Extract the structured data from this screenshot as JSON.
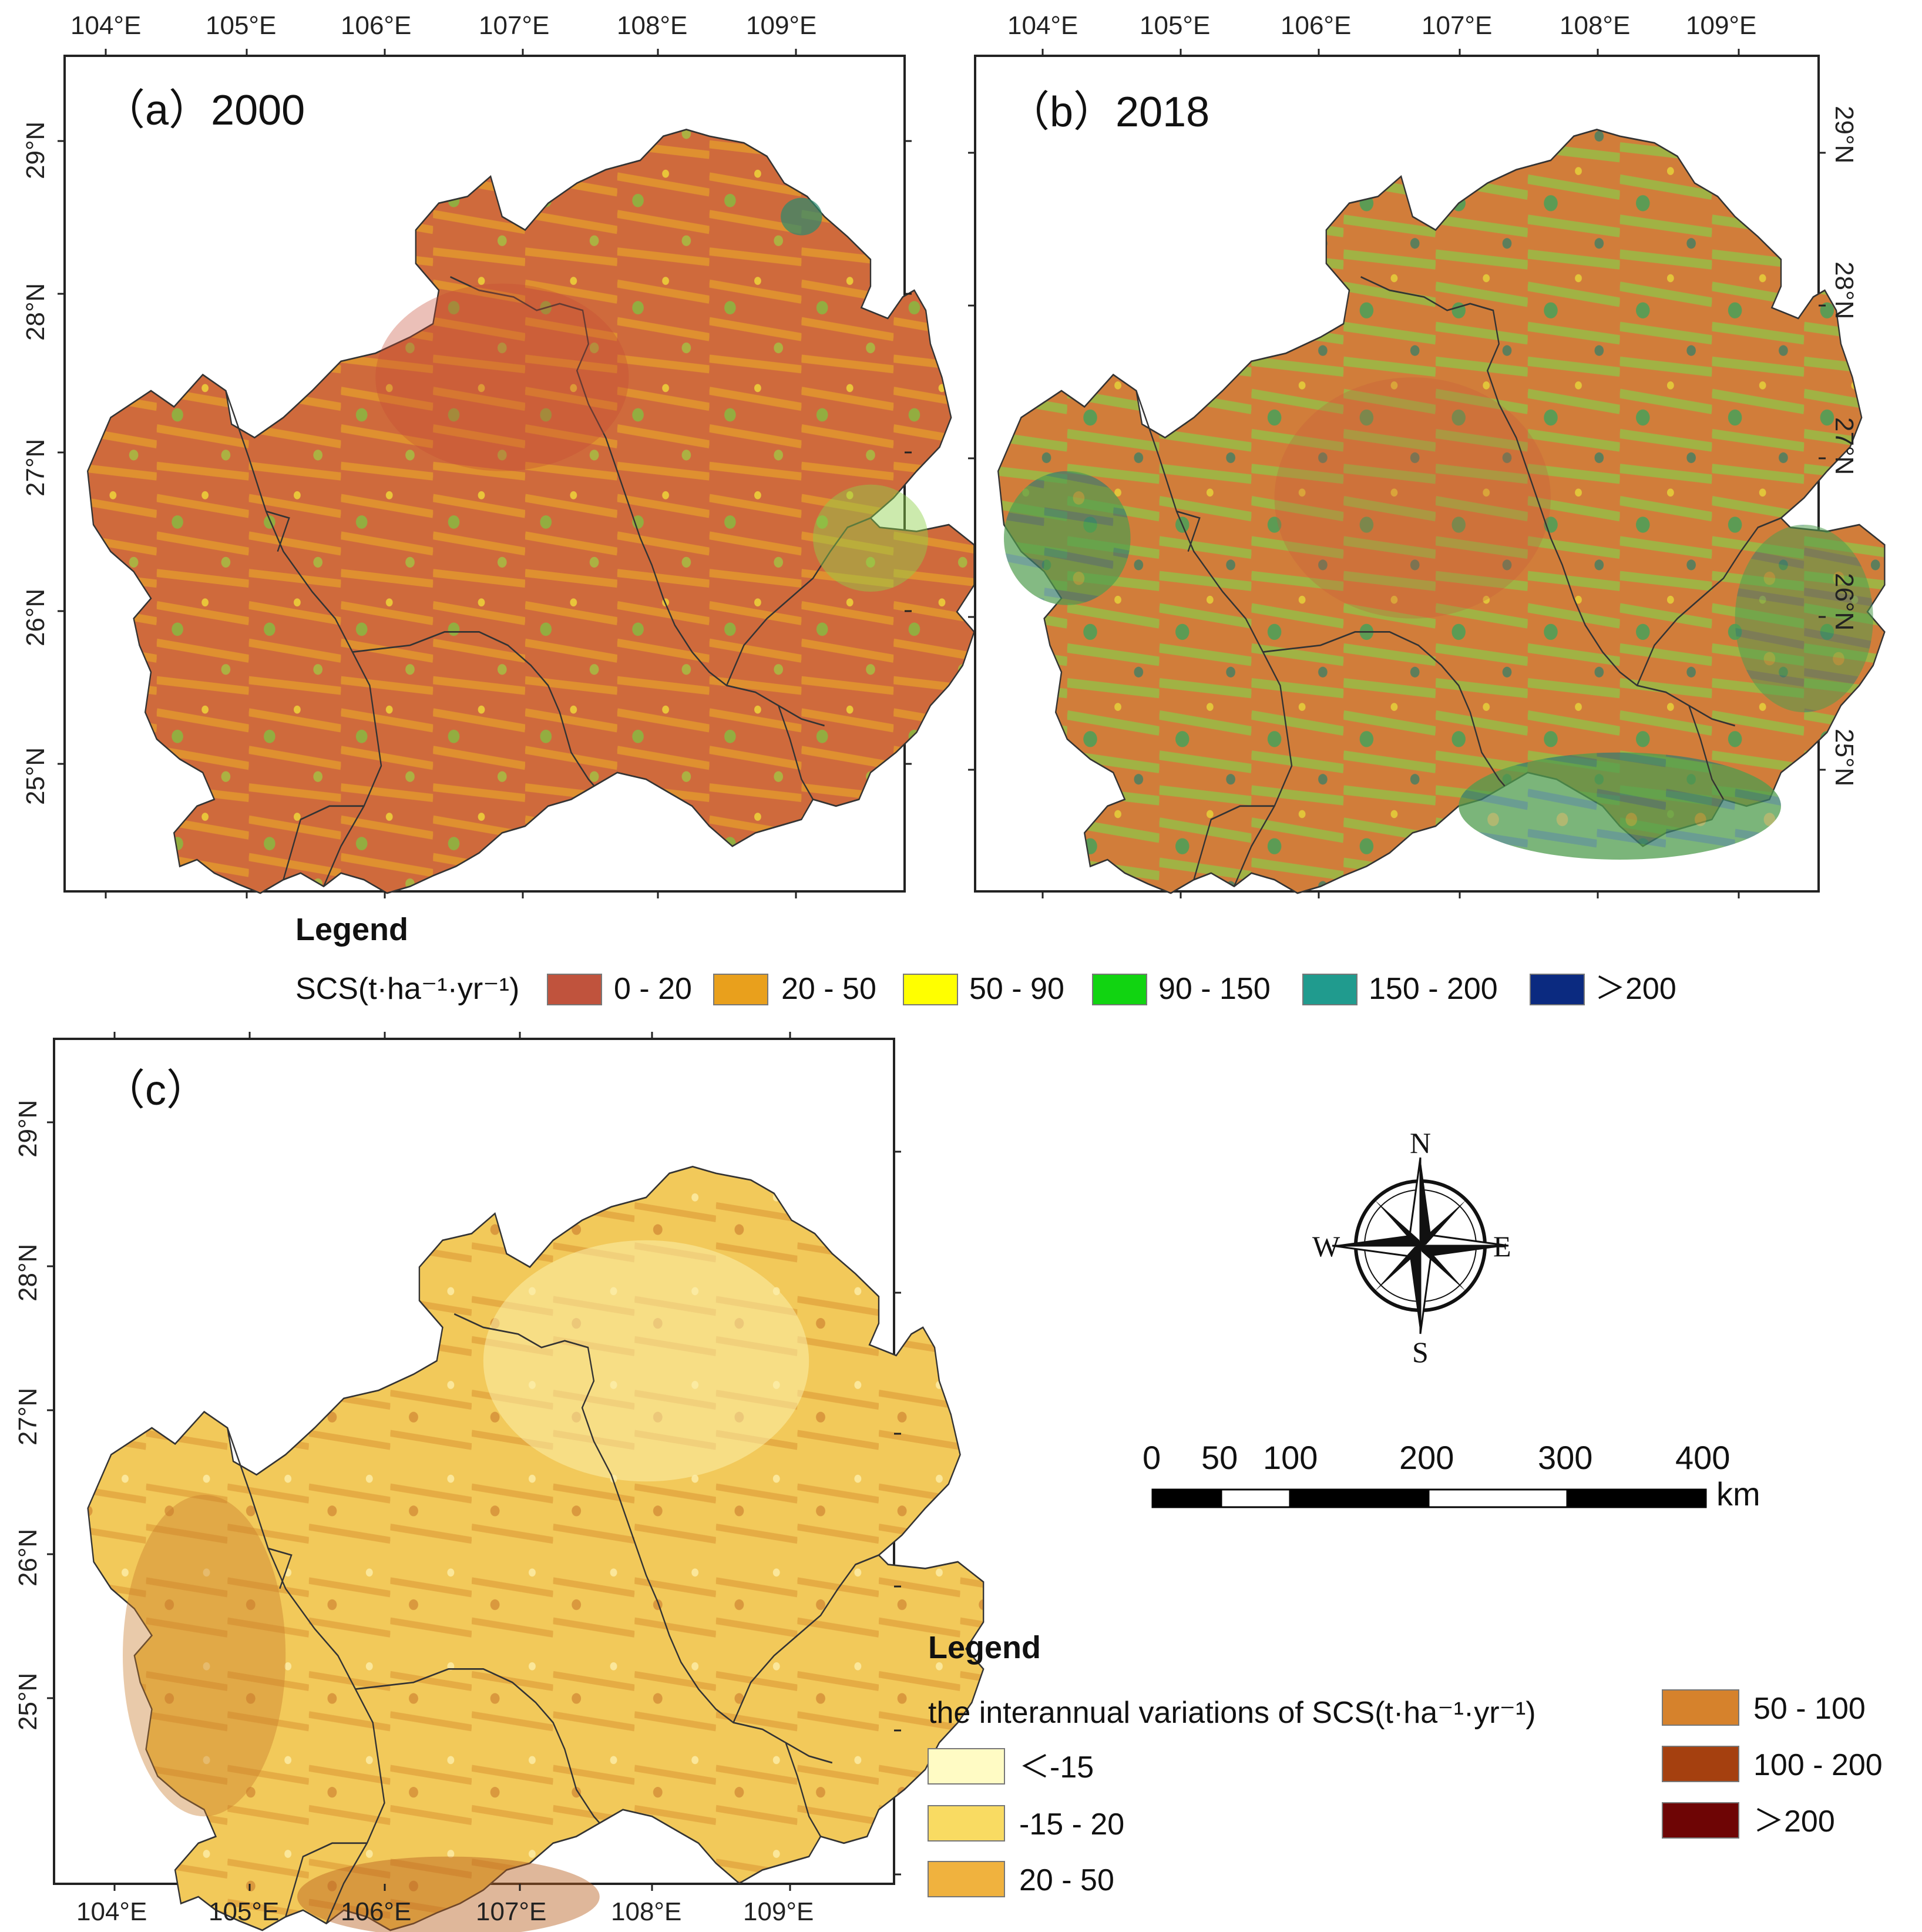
{
  "panels": [
    {
      "id": "a",
      "title": "（a）2000",
      "lon_ticks": [
        "104°E",
        "105°E",
        "106°E",
        "107°E",
        "108°E",
        "109°E"
      ],
      "lat_ticks": [
        "25°N",
        "26°N",
        "27°N",
        "28°N",
        "29°N"
      ]
    },
    {
      "id": "b",
      "title": "（b）2018",
      "lon_ticks": [
        "104°E",
        "105°E",
        "106°E",
        "107°E",
        "108°E",
        "109°E"
      ],
      "lat_ticks": [
        "25°N",
        "26°N",
        "27°N",
        "28°N",
        "29°N"
      ]
    },
    {
      "id": "c",
      "title": "（c）",
      "lon_ticks": [
        "104°E",
        "105°E",
        "106°E",
        "107°E",
        "108°E",
        "109°E"
      ],
      "lat_ticks": [
        "25°N",
        "26°N",
        "27°N",
        "28°N",
        "29°N"
      ]
    }
  ],
  "legend_top": {
    "heading": "Legend",
    "label": "SCS(t·ha⁻¹·yr⁻¹)",
    "classes": [
      {
        "label": "0 - 20",
        "color": "#c0533d"
      },
      {
        "label": "20 - 50",
        "color": "#e9a01c"
      },
      {
        "label": "50 - 90",
        "color": "#ffff00"
      },
      {
        "label": "90 - 150",
        "color": "#11d411"
      },
      {
        "label": "150 - 200",
        "color": "#209b8e"
      },
      {
        "label": "＞200",
        "color": "#0b2a80"
      }
    ]
  },
  "legend_bottom": {
    "heading": "Legend",
    "label": "the interannual variations of SCS(t·ha⁻¹·yr⁻¹)",
    "classes": [
      {
        "label": "＜-15",
        "color": "#fffbc4"
      },
      {
        "label": "-15 - 20",
        "color": "#f9db62"
      },
      {
        "label": "20 - 50",
        "color": "#f0b23e"
      },
      {
        "label": "50 - 100",
        "color": "#d6822c"
      },
      {
        "label": "100 - 200",
        "color": "#a5400f"
      },
      {
        "label": "＞200",
        "color": "#6e0505"
      }
    ]
  },
  "compass": {
    "n": "N",
    "s": "S",
    "e": "E",
    "w": "W"
  },
  "scale_bar": {
    "labels": [
      "0",
      "50",
      "100",
      "200",
      "300",
      "400"
    ],
    "unit": "km"
  }
}
